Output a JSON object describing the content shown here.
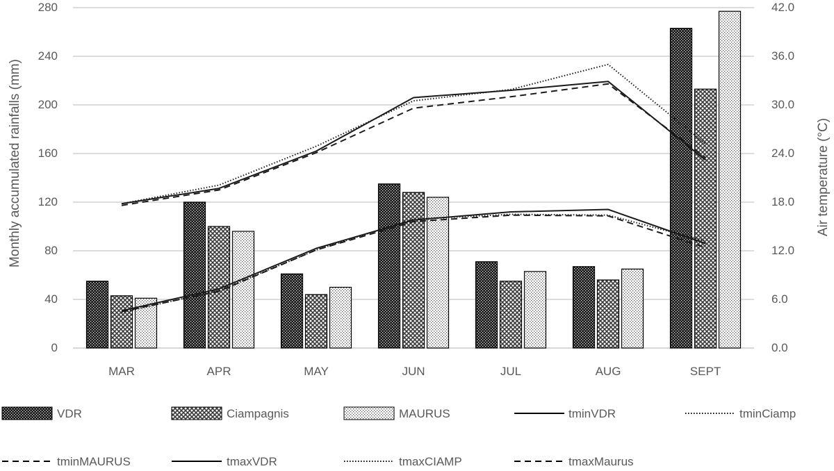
{
  "chart_data": {
    "type": "bar",
    "categories": [
      "MAR",
      "APR",
      "MAY",
      "JUN",
      "JUL",
      "AUG",
      "SEPT"
    ],
    "ylabel": "Monthly accumulated rainfalls (mm)",
    "y2label": "Air temperature (°C)",
    "ylim": [
      0,
      280
    ],
    "y2lim": [
      0,
      42
    ],
    "yticks": [
      "0",
      "40",
      "80",
      "120",
      "160",
      "200",
      "240",
      "280"
    ],
    "y2ticks": [
      "0.0",
      "6.0",
      "12.0",
      "18.0",
      "24.0",
      "30.0",
      "36.0",
      "42.0"
    ],
    "grid": true,
    "legend_position": "bottom",
    "bar_series": [
      {
        "name": "VDR",
        "pattern": "dense-dots",
        "values": [
          55,
          120,
          61,
          135,
          71,
          67,
          263
        ]
      },
      {
        "name": "Ciampagnis",
        "pattern": "crosshatch",
        "values": [
          43,
          100,
          44,
          128,
          55,
          56,
          213
        ]
      },
      {
        "name": "MAURUS",
        "pattern": "light-dots",
        "values": [
          41,
          96,
          50,
          124,
          63,
          65,
          277
        ]
      }
    ],
    "line_series": [
      {
        "name": "tminVDR",
        "style": "solid",
        "axis": "right",
        "values": [
          4.6,
          7.3,
          12.3,
          15.8,
          16.8,
          17.1,
          12.9
        ]
      },
      {
        "name": "tminCiamp",
        "style": "dotted",
        "axis": "right",
        "values": [
          4.4,
          7.1,
          12.1,
          15.9,
          16.5,
          16.4,
          13.2
        ]
      },
      {
        "name": "tminMAURUS",
        "style": "dashed",
        "axis": "right",
        "values": [
          4.5,
          7.0,
          12.1,
          15.6,
          16.4,
          16.3,
          12.4
        ]
      },
      {
        "name": "tmaxVDR",
        "style": "solid",
        "axis": "right",
        "values": [
          17.8,
          19.7,
          24.3,
          30.9,
          31.8,
          32.9,
          23.2
        ]
      },
      {
        "name": "tmaxCIAMP",
        "style": "dotted",
        "axis": "right",
        "values": [
          17.8,
          20.1,
          24.9,
          30.5,
          31.9,
          35.0,
          25.2
        ]
      },
      {
        "name": "tmaxMaurus",
        "style": "dashed",
        "axis": "right",
        "values": [
          17.6,
          19.5,
          24.1,
          29.6,
          31.0,
          32.6,
          23.5
        ]
      }
    ]
  }
}
